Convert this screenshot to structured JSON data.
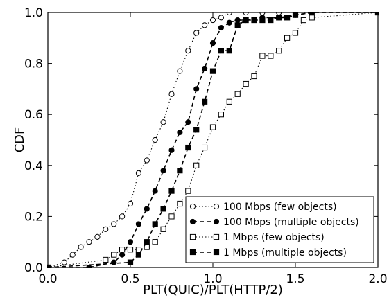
{
  "chart_data": {
    "type": "line",
    "title": "",
    "xlabel": "PLT(QUIC)/PLT(HTTP/2)",
    "ylabel": "CDF",
    "xlim": [
      0.0,
      2.0
    ],
    "ylim": [
      0.0,
      1.0
    ],
    "xticks": [
      0.0,
      0.5,
      1.0,
      1.5,
      2.0
    ],
    "xtick_labels": [
      "0.0",
      "0.5",
      "1.0",
      "1.5",
      "2.0"
    ],
    "yticks": [
      0.0,
      0.2,
      0.4,
      0.6,
      0.8,
      1.0
    ],
    "ytick_labels": [
      "0.0",
      "0.2",
      "0.4",
      "0.6",
      "0.8",
      "1.0"
    ],
    "grid": false,
    "legend_position": "lower-right",
    "series": [
      {
        "name": "100 Mbps (few objects)",
        "marker": "open-circle",
        "linestyle": "dotted",
        "color": "#000000",
        "x": [
          0.0,
          0.1,
          0.15,
          0.2,
          0.25,
          0.3,
          0.35,
          0.4,
          0.45,
          0.5,
          0.55,
          0.6,
          0.65,
          0.7,
          0.75,
          0.8,
          0.85,
          0.9,
          0.95,
          1.0,
          1.05,
          1.1,
          1.2,
          1.3,
          1.4,
          1.6,
          2.0
        ],
        "y": [
          0.0,
          0.02,
          0.05,
          0.08,
          0.1,
          0.12,
          0.15,
          0.17,
          0.2,
          0.25,
          0.37,
          0.42,
          0.5,
          0.57,
          0.68,
          0.77,
          0.85,
          0.92,
          0.95,
          0.97,
          0.98,
          1.0,
          1.0,
          1.0,
          1.0,
          1.0,
          1.0
        ]
      },
      {
        "name": "100 Mbps (multiple objects)",
        "marker": "filled-circle",
        "linestyle": "dashed",
        "color": "#000000",
        "x": [
          0.0,
          0.25,
          0.4,
          0.45,
          0.5,
          0.55,
          0.6,
          0.65,
          0.7,
          0.75,
          0.8,
          0.85,
          0.9,
          0.95,
          1.0,
          1.05,
          1.1,
          1.15,
          1.2,
          1.3,
          1.4,
          1.5,
          1.6,
          2.0
        ],
        "y": [
          0.0,
          0.0,
          0.02,
          0.05,
          0.1,
          0.17,
          0.23,
          0.3,
          0.38,
          0.46,
          0.53,
          0.57,
          0.7,
          0.78,
          0.88,
          0.94,
          0.96,
          0.97,
          0.97,
          0.98,
          0.98,
          0.99,
          1.0,
          1.0
        ]
      },
      {
        "name": "1 Mbps (few objects)",
        "marker": "open-square",
        "linestyle": "dotted",
        "color": "#000000",
        "x": [
          0.0,
          0.35,
          0.4,
          0.45,
          0.5,
          0.55,
          0.6,
          0.65,
          0.7,
          0.75,
          0.8,
          0.85,
          0.9,
          0.95,
          1.0,
          1.05,
          1.1,
          1.15,
          1.2,
          1.25,
          1.3,
          1.35,
          1.4,
          1.45,
          1.5,
          1.55,
          1.6,
          2.0
        ],
        "y": [
          0.0,
          0.03,
          0.05,
          0.07,
          0.07,
          0.07,
          0.08,
          0.1,
          0.15,
          0.2,
          0.25,
          0.3,
          0.4,
          0.47,
          0.55,
          0.6,
          0.65,
          0.68,
          0.72,
          0.75,
          0.83,
          0.83,
          0.85,
          0.9,
          0.92,
          0.97,
          0.98,
          1.0
        ]
      },
      {
        "name": "1 Mbps (multiple objects)",
        "marker": "filled-square",
        "linestyle": "dashed",
        "color": "#000000",
        "x": [
          0.0,
          0.5,
          0.55,
          0.6,
          0.65,
          0.7,
          0.75,
          0.8,
          0.85,
          0.9,
          0.95,
          1.0,
          1.05,
          1.1,
          1.15,
          1.2,
          1.25,
          1.3,
          1.35,
          1.4,
          1.45,
          1.5,
          1.6,
          2.0
        ],
        "y": [
          0.0,
          0.02,
          0.05,
          0.1,
          0.17,
          0.23,
          0.3,
          0.38,
          0.47,
          0.54,
          0.65,
          0.77,
          0.85,
          0.85,
          0.95,
          0.97,
          0.97,
          0.97,
          0.97,
          0.98,
          0.98,
          0.99,
          1.0,
          1.0
        ]
      }
    ]
  }
}
